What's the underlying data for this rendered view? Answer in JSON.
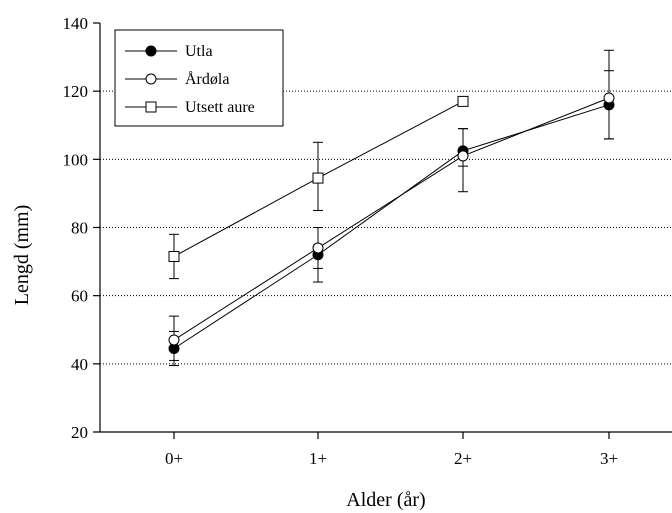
{
  "chart_data": {
    "type": "line",
    "xlabel": "Alder (år)",
    "ylabel": "Lengd (mm)",
    "categories": [
      "0+",
      "1+",
      "2+",
      "3+"
    ],
    "ylim": [
      20,
      140
    ],
    "yticks": [
      20,
      40,
      60,
      80,
      100,
      120,
      140
    ],
    "grid": "horizontal dotted",
    "legend_position": "top-left",
    "series": [
      {
        "name": "Utla",
        "marker": "filled-circle",
        "values": [
          44.5,
          72,
          102.5,
          116
        ],
        "err_low": [
          39.5,
          64,
          98,
          106
        ],
        "err_high": [
          49.5,
          80,
          109,
          126
        ]
      },
      {
        "name": "Årdøla",
        "marker": "open-circle",
        "values": [
          47,
          74,
          101,
          118
        ],
        "err_low": [
          41,
          68,
          90.5,
          106
        ],
        "err_high": [
          54,
          80,
          109,
          132
        ]
      },
      {
        "name": "Utsett aure",
        "marker": "open-square",
        "values": [
          71.5,
          94.5,
          117,
          null
        ],
        "err_low": [
          65,
          85,
          null,
          null
        ],
        "err_high": [
          78,
          105,
          null,
          null
        ]
      }
    ]
  }
}
